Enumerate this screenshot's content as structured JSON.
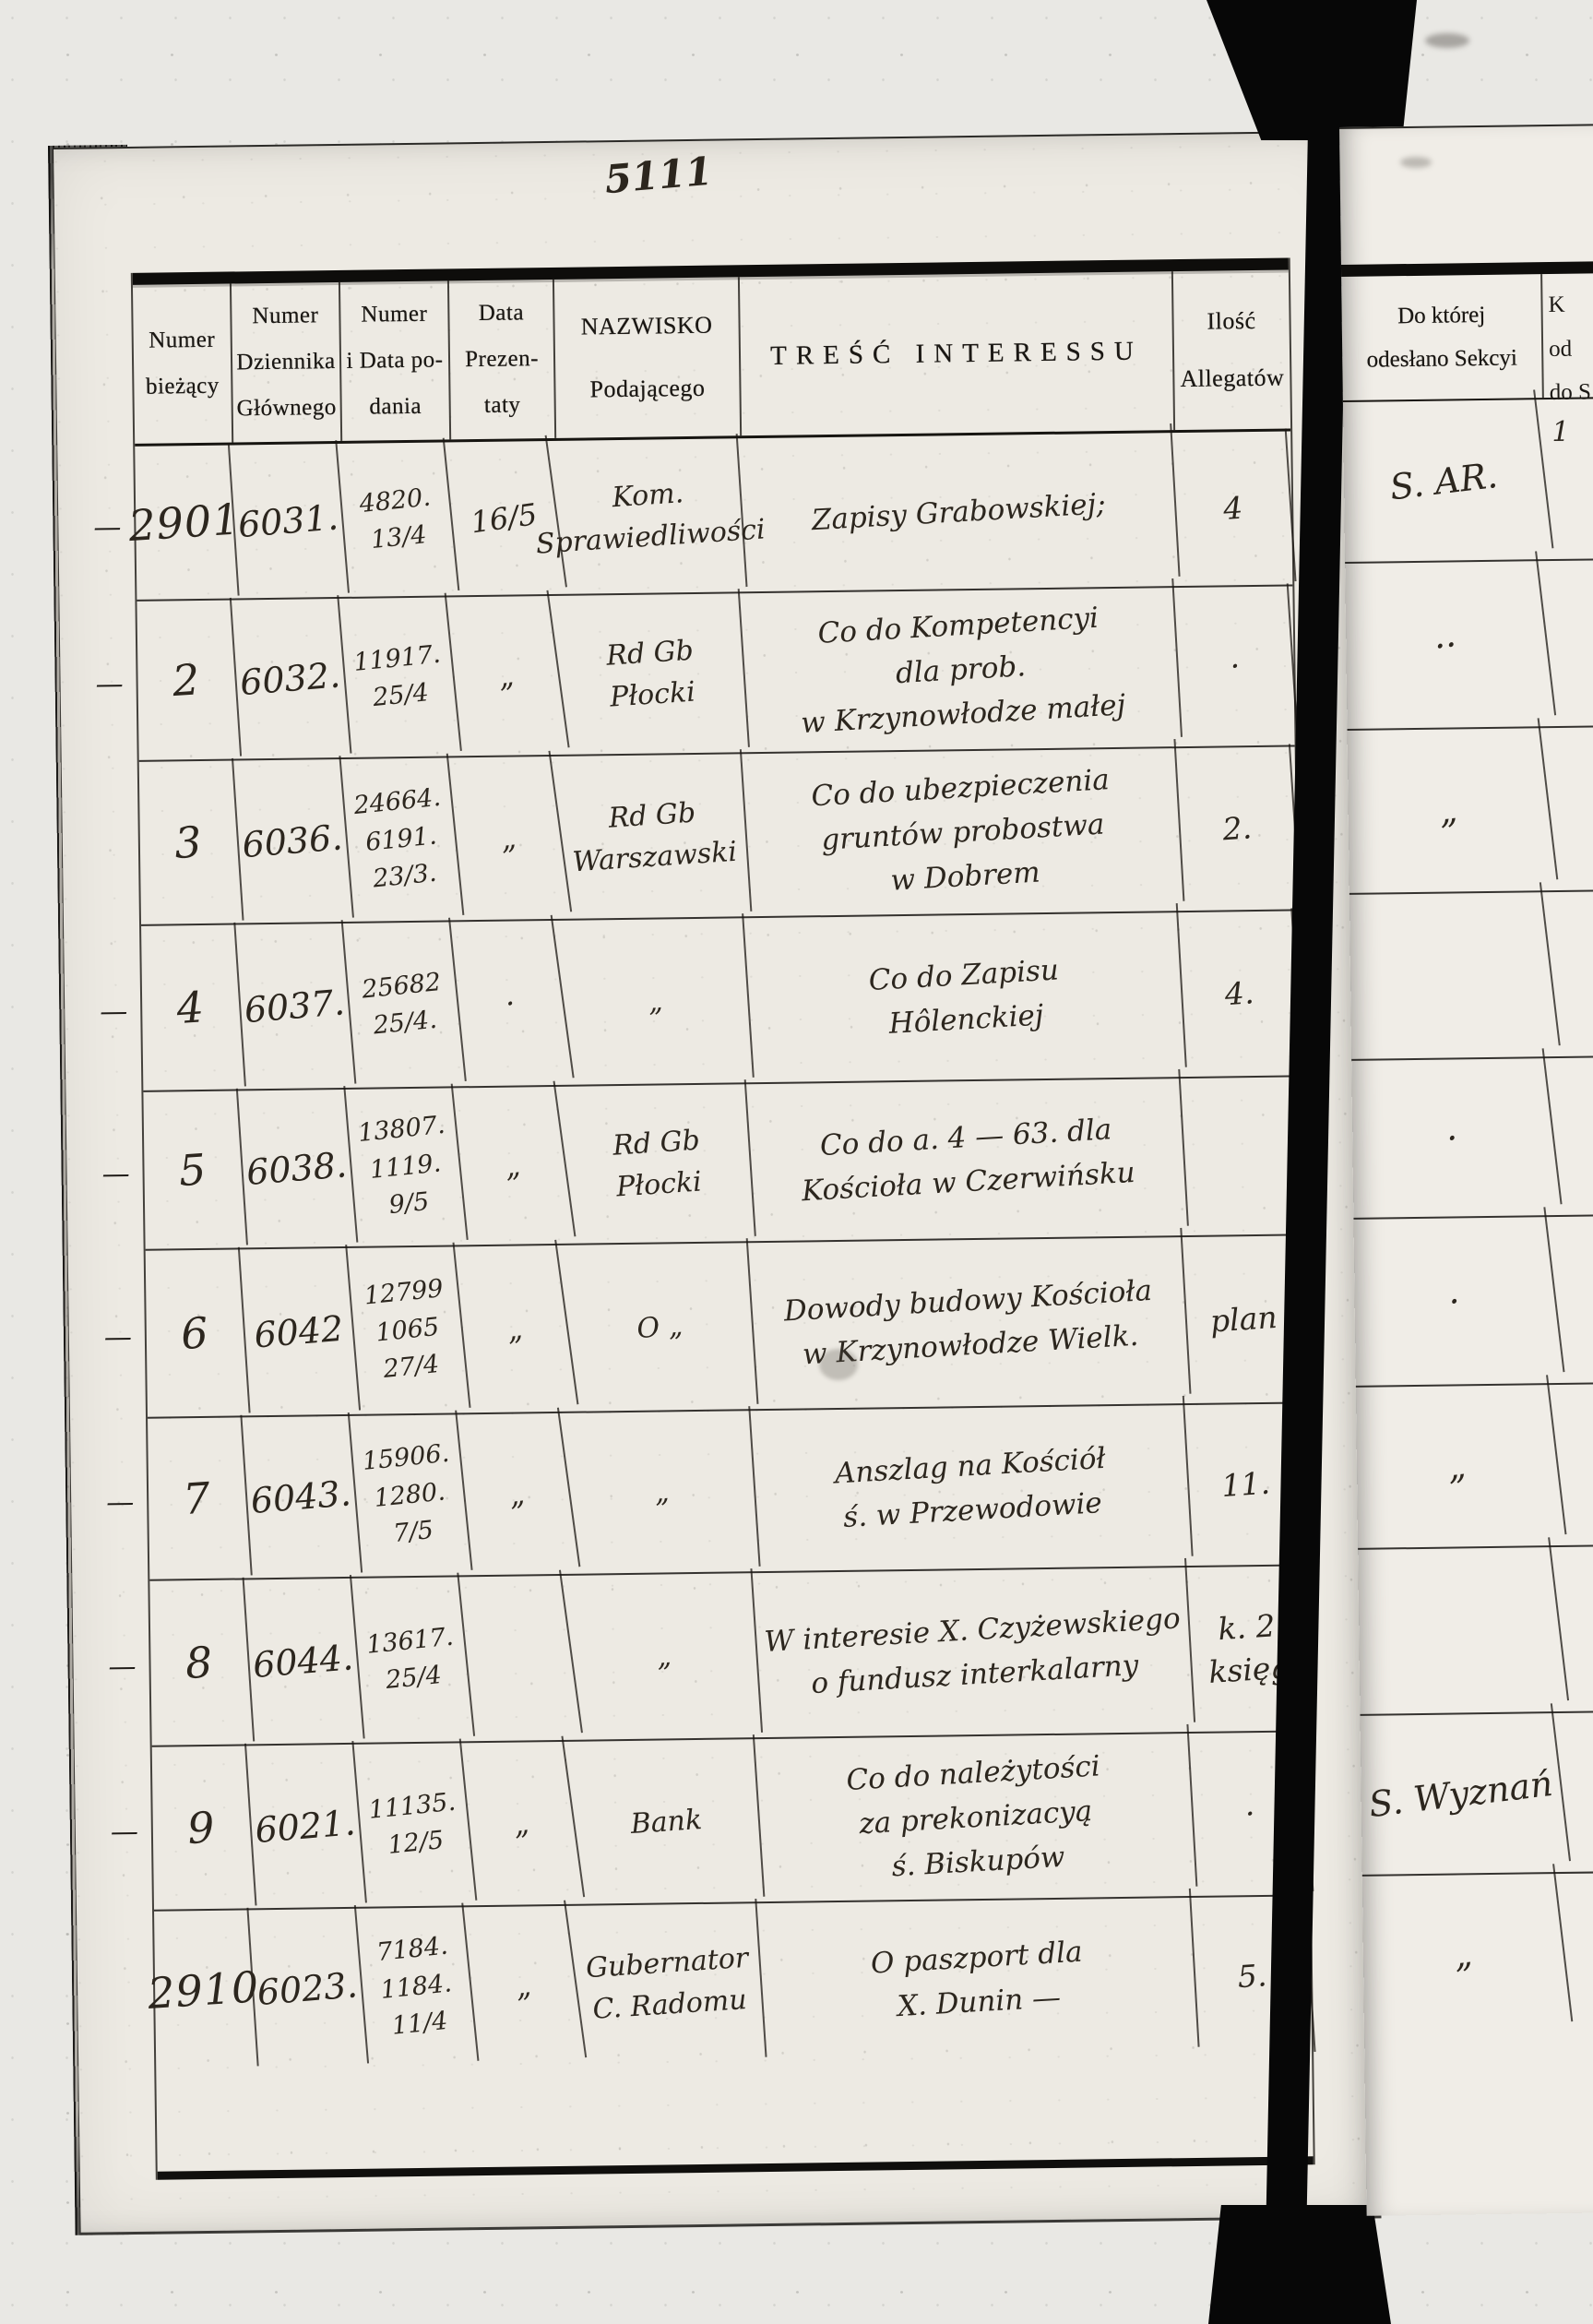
{
  "colors": {
    "paper": "#edeae3",
    "paper_right": "#f0ede7",
    "ink_print": "#1b1814",
    "ink_hand": "#2c261e",
    "binding": "#070707",
    "bg": "#e9e8e4"
  },
  "page": {
    "handwritten_number": "5111"
  },
  "table": {
    "columns": [
      {
        "label": "Numer\nbieżący"
      },
      {
        "label": "Numer\nDziennika\nGłównego"
      },
      {
        "label": "Numer\ni Data po-\ndania"
      },
      {
        "label": "Data\nPrezen-\ntaty"
      },
      {
        "label": "NAZWISKO\nPodającego"
      },
      {
        "label": "TREŚĆ INTERESSU"
      },
      {
        "label": "Ilość\nAllegatów"
      }
    ],
    "rows": [
      {
        "margin": "—",
        "nr": "2901",
        "dziennik": "6031.",
        "podanie": "4820.\n13/4",
        "prezentata": "16/5",
        "nazwisko": "Kom.\nSprawiedliwości",
        "tresc": "Zapisy Grabowskiej;",
        "ilosc": "4"
      },
      {
        "margin": "—",
        "nr": "2",
        "dziennik": "6032.",
        "podanie": "11917.\n25/4",
        "prezentata": "„",
        "nazwisko": "Rd Gb Płocki",
        "tresc": "Co do Kompetencyi\ndla prob.\nw Krzynowłodze małej",
        "ilosc": "·"
      },
      {
        "margin": "",
        "nr": "3",
        "dziennik": "6036.",
        "podanie": "24664.\n6191.\n23/3.",
        "prezentata": "„",
        "nazwisko": "Rd Gb Warszawski",
        "tresc": "Co do ubezpieczenia\ngruntów probostwa\nw Dobrem",
        "ilosc": "2."
      },
      {
        "margin": "—",
        "nr": "4",
        "dziennik": "6037.",
        "podanie": "25682\n25/4.",
        "prezentata": "·",
        "nazwisko": "„",
        "tresc": "Co do Zapisu\nHôlenckiej",
        "ilosc": "4."
      },
      {
        "margin": "—",
        "nr": "5",
        "dziennik": "6038.",
        "podanie": "13807.\n1119.\n9/5",
        "prezentata": "„",
        "nazwisko": "Rd Gb Płocki",
        "tresc": "Co do a. 4 — 63. dla\nKościoła w Czerwińsku",
        "ilosc": ""
      },
      {
        "margin": "—",
        "nr": "6",
        "dziennik": "6042",
        "podanie": "12799\n1065\n27/4",
        "prezentata": "„",
        "nazwisko": "O  „",
        "tresc": "Dowody budowy Kościoła\nw Krzynowłodze Wielk.",
        "ilosc": "plan"
      },
      {
        "margin": "—",
        "nr": "7",
        "dziennik": "6043.",
        "podanie": "15906.\n1280.\n7/5",
        "prezentata": "„",
        "nazwisko": "„",
        "tresc": "Anszlag na Kościół\nś.  w Przewodowie",
        "ilosc": "11."
      },
      {
        "margin": "—",
        "nr": "8",
        "dziennik": "6044.",
        "podanie": "13617.\n25/4",
        "prezentata": "",
        "nazwisko": "„",
        "tresc": "W interesie X. Czyżewskiego\no fundusz interkalarny",
        "ilosc": "k. 2\nksięg"
      },
      {
        "margin": "—",
        "nr": "9",
        "dziennik": "6021.",
        "podanie": "11135.\n12/5",
        "prezentata": "„",
        "nazwisko": "Bank",
        "tresc": "Co do należytości\nza prekonizacyą\nś. Biskupów",
        "ilosc": "·"
      },
      {
        "margin": "",
        "nr": "2910",
        "dziennik": "6023.",
        "podanie": "7184.\n1184.\n11/4",
        "prezentata": "„",
        "nazwisko": "Gubernator\nC. Radomu",
        "tresc": "O paszport dla\nX. Dunin —",
        "ilosc": "5."
      }
    ]
  },
  "right_table": {
    "columns": [
      {
        "label": "Do której\nodesłano Sekcyi"
      },
      {
        "label": "K\nod\ndo S"
      }
    ],
    "rows": [
      {
        "sekcya": "S. AR.",
        "edge": "1"
      },
      {
        "sekcya": "··",
        "edge": ""
      },
      {
        "sekcya": "„",
        "edge": ""
      },
      {
        "sekcya": "",
        "edge": ""
      },
      {
        "sekcya": "·",
        "edge": ""
      },
      {
        "sekcya": "·",
        "edge": ""
      },
      {
        "sekcya": "„",
        "edge": ""
      },
      {
        "sekcya": "",
        "edge": ""
      },
      {
        "sekcya": "S. Wyznań",
        "edge": ""
      },
      {
        "sekcya": "„",
        "edge": ""
      }
    ]
  }
}
